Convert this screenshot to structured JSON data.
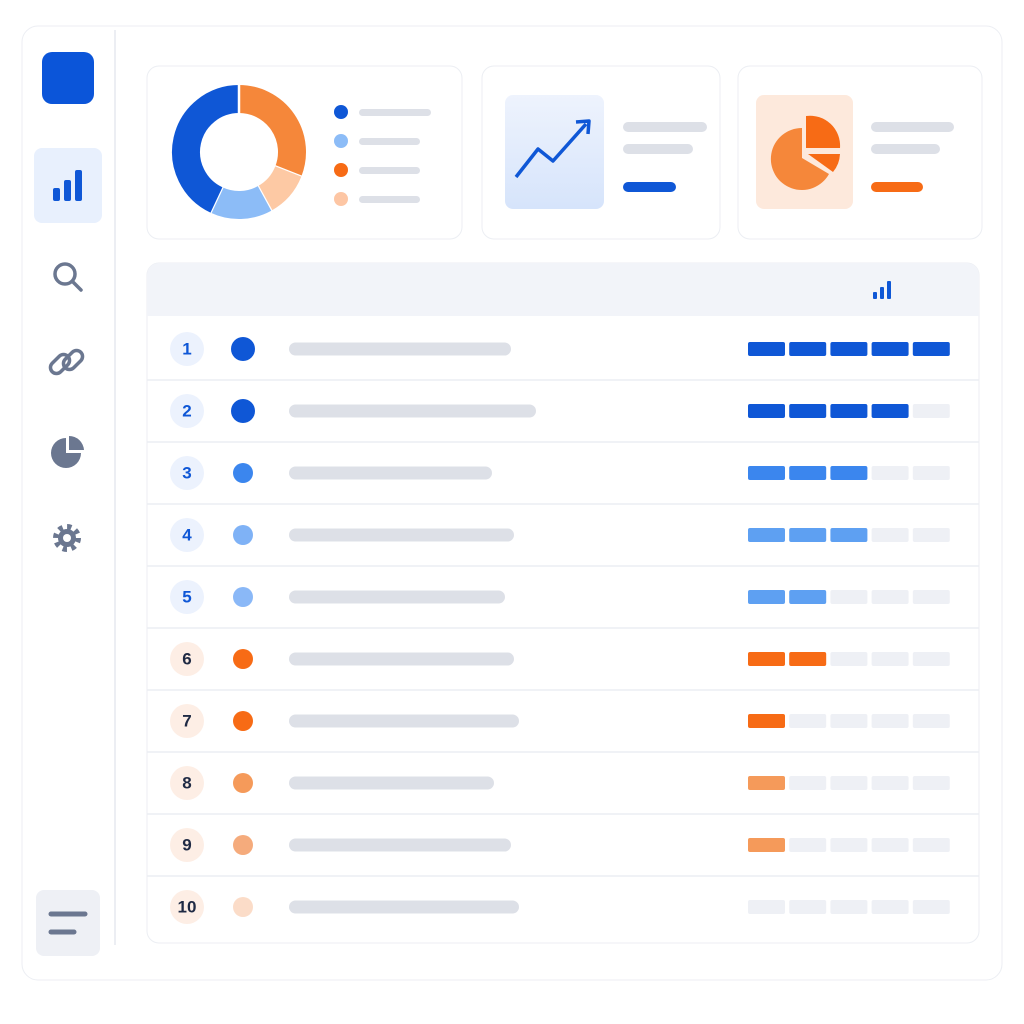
{
  "summary": {
    "type": "pie",
    "values": [
      31,
      11,
      15,
      43
    ],
    "colors": [
      "#f5873a",
      "#fdc9a4",
      "#8cbcf7",
      "#0f57d6"
    ]
  },
  "table": {
    "scale_max": 5,
    "empty_color": "#eef0f5",
    "rows": [
      {
        "rank": "1",
        "dot": "#0f57d6",
        "bar": "#0f57d6",
        "score": 5,
        "line": 222
      },
      {
        "rank": "2",
        "dot": "#0f57d6",
        "bar": "#0f57d6",
        "score": 4,
        "line": 247
      },
      {
        "rank": "3",
        "dot": "#3b86ee",
        "bar": "#3b86ee",
        "score": 3,
        "line": 203
      },
      {
        "rank": "4",
        "dot": "#7fb2f6",
        "bar": "#5ea0f2",
        "score": 3,
        "line": 225
      },
      {
        "rank": "5",
        "dot": "#8ab8f7",
        "bar": "#5ea0f2",
        "score": 2,
        "line": 216
      },
      {
        "rank": "6",
        "dot": "#f76b15",
        "bar": "#f76b15",
        "score": 2,
        "line": 225
      },
      {
        "rank": "7",
        "dot": "#f76b15",
        "bar": "#f76b15",
        "score": 1,
        "line": 230
      },
      {
        "rank": "8",
        "dot": "#f59a5a",
        "bar": "#f59a5a",
        "score": 1,
        "line": 205
      },
      {
        "rank": "9",
        "dot": "#f5ab7c",
        "bar": "#f59a5a",
        "score": 1,
        "line": 222
      },
      {
        "rank": "10",
        "dot": "#fbdcc8",
        "bar": "#f59a5a",
        "score": 0,
        "line": 230
      }
    ]
  }
}
